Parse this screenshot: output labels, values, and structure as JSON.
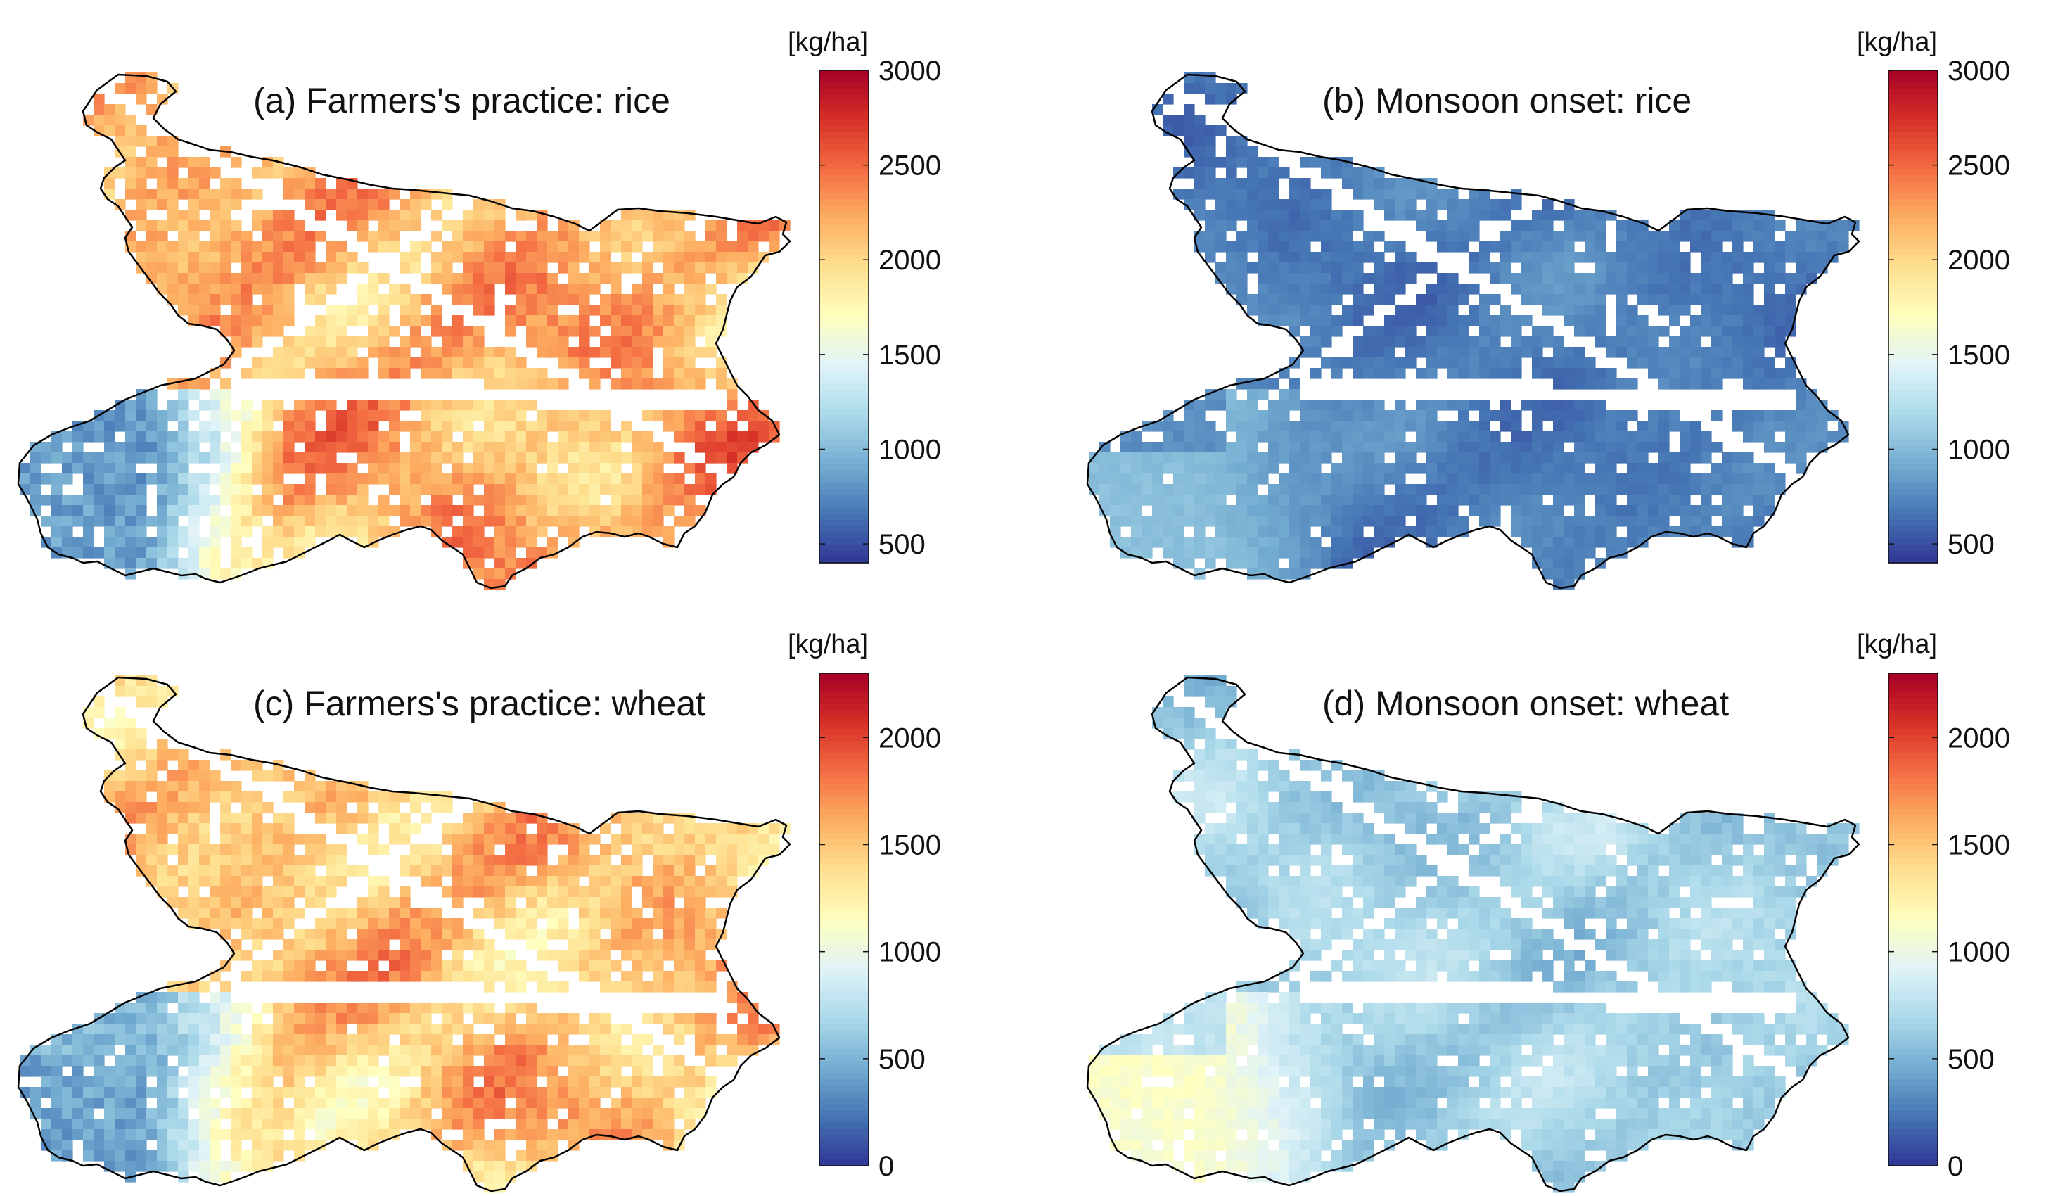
{
  "figure": {
    "panels": [
      {
        "id": "a",
        "title": "(a) Farmers's practice: rice",
        "crop": "rice",
        "scenario": "Farmers's practice",
        "colorbar": {
          "unit": "[kg/ha]",
          "min": 400,
          "max": 3000,
          "ticks": [
            500,
            1000,
            1500,
            2000,
            2500,
            3000
          ],
          "tick_labels": [
            "500",
            "1000",
            "1500",
            "2000",
            "2500",
            "3000"
          ]
        },
        "field": {
          "mean_yield": 2200,
          "spread": 500,
          "west_low": 800,
          "south_west_low": 500,
          "missing_rate": 0.12
        }
      },
      {
        "id": "b",
        "title": "(b) Monsoon onset: rice",
        "crop": "rice",
        "scenario": "Monsoon onset",
        "colorbar": {
          "unit": "[kg/ha]",
          "min": 400,
          "max": 3000,
          "ticks": [
            500,
            1000,
            1500,
            2000,
            2500,
            3000
          ],
          "tick_labels": [
            "500",
            "1000",
            "1500",
            "2000",
            "2500",
            "3000"
          ]
        },
        "field": {
          "mean_yield": 700,
          "spread": 150,
          "west_low": 550,
          "south_west_low": 1100,
          "missing_rate": 0.1
        }
      },
      {
        "id": "c",
        "title": "(c) Farmers's practice: wheat",
        "crop": "wheat",
        "scenario": "Farmers's practice",
        "colorbar": {
          "unit": "[kg/ha]",
          "min": 0,
          "max": 2300,
          "ticks": [
            0,
            500,
            1000,
            1500,
            2000
          ],
          "tick_labels": [
            "0",
            "500",
            "1000",
            "1500",
            "2000"
          ]
        },
        "field": {
          "mean_yield": 1500,
          "spread": 450,
          "west_low": 600,
          "south_west_low": 150,
          "missing_rate": 0.12
        }
      },
      {
        "id": "d",
        "title": "(d) Monsoon onset: wheat",
        "crop": "wheat",
        "scenario": "Monsoon onset",
        "colorbar": {
          "unit": "[kg/ha]",
          "min": 0,
          "max": 2300,
          "ticks": [
            0,
            500,
            1000,
            1500,
            2000
          ],
          "tick_labels": [
            "0",
            "500",
            "1000",
            "1500",
            "2000"
          ]
        },
        "field": {
          "mean_yield": 650,
          "spread": 200,
          "west_low": 450,
          "south_west_low": 1200,
          "missing_rate": 0.1
        }
      }
    ],
    "colormap": [
      "#313695",
      "#4575b4",
      "#74add1",
      "#abd9e9",
      "#e0f3f8",
      "#ffffbf",
      "#fee090",
      "#fdae61",
      "#f46d43",
      "#d73027",
      "#a50026"
    ]
  },
  "chart_data": [
    {
      "type": "heatmap",
      "title": "(a) Farmers's practice: rice",
      "colorbar_label": "[kg/ha]",
      "clim": [
        400,
        3000
      ],
      "colorbar_ticks": [
        500,
        1000,
        1500,
        2000,
        2500,
        3000
      ],
      "typical_values": {
        "east_and_north": 2300,
        "south_west": 600,
        "river_corridor": 1500
      }
    },
    {
      "type": "heatmap",
      "title": "(b) Monsoon onset: rice",
      "colorbar_label": "[kg/ha]",
      "clim": [
        400,
        3000
      ],
      "colorbar_ticks": [
        500,
        1000,
        1500,
        2000,
        2500,
        3000
      ],
      "typical_values": {
        "east_and_north": 650,
        "south_west": 900,
        "river_corridor": 700
      }
    },
    {
      "type": "heatmap",
      "title": "(c) Farmers's practice: wheat",
      "colorbar_label": "[kg/ha]",
      "clim": [
        0,
        2300
      ],
      "colorbar_ticks": [
        0,
        500,
        1000,
        1500,
        2000
      ],
      "typical_values": {
        "east_and_north": 1600,
        "south_west": 300,
        "river_corridor": 1000
      }
    },
    {
      "type": "heatmap",
      "title": "(d) Monsoon onset: wheat",
      "colorbar_label": "[kg/ha]",
      "clim": [
        0,
        2300
      ],
      "colorbar_ticks": [
        0,
        500,
        1000,
        1500,
        2000
      ],
      "typical_values": {
        "east_and_north": 800,
        "south_west": 1100,
        "river_corridor": 750
      }
    }
  ]
}
